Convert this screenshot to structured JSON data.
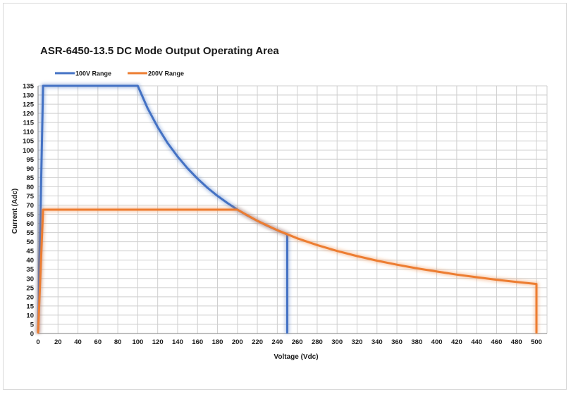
{
  "chart_data": {
    "type": "line",
    "title": "ASR-6450-13.5 DC Mode Output Operating Area",
    "xlabel": "Voltage (Vdc)",
    "ylabel": "Current (Adc)",
    "xlim": [
      0,
      500
    ],
    "ylim": [
      0,
      135
    ],
    "xticks": [
      0,
      20,
      40,
      60,
      80,
      100,
      120,
      140,
      160,
      180,
      200,
      220,
      240,
      260,
      280,
      300,
      320,
      340,
      360,
      380,
      400,
      420,
      440,
      460,
      480,
      500
    ],
    "yticks": [
      0,
      5,
      10,
      15,
      20,
      25,
      30,
      35,
      40,
      45,
      50,
      55,
      60,
      65,
      70,
      75,
      80,
      85,
      90,
      95,
      100,
      105,
      110,
      115,
      120,
      125,
      130,
      135
    ],
    "grid": true,
    "legend_position": "top-left",
    "series": [
      {
        "name": "100V Range",
        "color": "#4472C4",
        "x": [
          0,
          5,
          100,
          110,
          120,
          130,
          140,
          150,
          160,
          170,
          180,
          190,
          200,
          210,
          220,
          230,
          240,
          250,
          250
        ],
        "y": [
          0,
          135,
          135,
          122.7,
          112.5,
          103.8,
          96.4,
          90,
          84.4,
          79.4,
          75,
          71.1,
          67.5,
          64.3,
          61.4,
          58.7,
          56.3,
          54,
          0
        ]
      },
      {
        "name": "200V Range",
        "color": "#ED7D31",
        "x": [
          0,
          5,
          200,
          220,
          240,
          260,
          280,
          300,
          320,
          340,
          360,
          380,
          400,
          420,
          440,
          460,
          480,
          500,
          500
        ],
        "y": [
          0,
          67.5,
          67.5,
          61.4,
          56.3,
          51.9,
          48.2,
          45,
          42.2,
          39.7,
          37.5,
          35.5,
          33.8,
          32.1,
          30.7,
          29.3,
          28.1,
          27,
          0
        ]
      }
    ]
  }
}
